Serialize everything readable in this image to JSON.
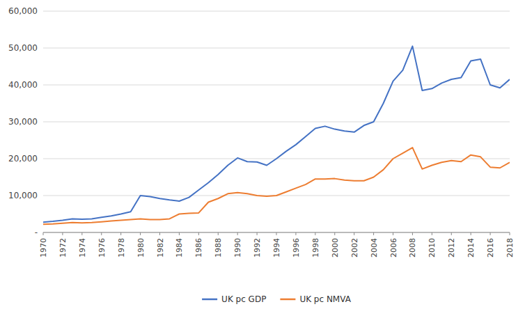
{
  "chart_data": {
    "type": "line",
    "x": [
      1970,
      1971,
      1972,
      1973,
      1974,
      1975,
      1976,
      1977,
      1978,
      1979,
      1980,
      1981,
      1982,
      1983,
      1984,
      1985,
      1986,
      1987,
      1988,
      1989,
      1990,
      1991,
      1992,
      1993,
      1994,
      1995,
      1996,
      1997,
      1998,
      1999,
      2000,
      2001,
      2002,
      2003,
      2004,
      2005,
      2006,
      2007,
      2008,
      2009,
      2010,
      2011,
      2012,
      2013,
      2014,
      2015,
      2016,
      2017,
      2018
    ],
    "series": [
      {
        "name": "UK pc GDP",
        "color": "#4472C4",
        "values": [
          2800,
          3000,
          3300,
          3700,
          3600,
          3700,
          4100,
          4500,
          5000,
          5600,
          10000,
          9700,
          9200,
          8800,
          8500,
          9500,
          11500,
          13500,
          15700,
          18200,
          20200,
          19200,
          19100,
          18200,
          20000,
          22000,
          23800,
          26000,
          28200,
          28800,
          28000,
          27500,
          27200,
          29000,
          30000,
          35000,
          41000,
          44000,
          50500,
          38500,
          39000,
          40500,
          41500,
          42000,
          46500,
          47000,
          40000,
          39200,
          41500
        ]
      },
      {
        "name": "UK pc NMVA",
        "color": "#ED7D31",
        "values": [
          2200,
          2300,
          2500,
          2700,
          2600,
          2700,
          2900,
          3100,
          3300,
          3500,
          3700,
          3500,
          3500,
          3700,
          5000,
          5200,
          5300,
          8200,
          9200,
          10500,
          10800,
          10500,
          10000,
          9800,
          10000,
          11000,
          12000,
          13000,
          14500,
          14500,
          14600,
          14200,
          14000,
          14000,
          15000,
          17000,
          20000,
          21500,
          23000,
          17200,
          18200,
          19000,
          19500,
          19200,
          21000,
          20500,
          17700,
          17500,
          19000
        ]
      }
    ],
    "xlim": [
      1970,
      2018
    ],
    "xticks": [
      1970,
      1972,
      1974,
      1976,
      1978,
      1980,
      1982,
      1984,
      1986,
      1988,
      1990,
      1992,
      1994,
      1996,
      1998,
      2000,
      2002,
      2004,
      2006,
      2008,
      2010,
      2012,
      2014,
      2016,
      2018
    ],
    "ylim": [
      0,
      60000
    ],
    "yticks": [
      {
        "value": 0,
        "label": "-"
      },
      {
        "value": 10000,
        "label": "10,000"
      },
      {
        "value": 20000,
        "label": "20,000"
      },
      {
        "value": 30000,
        "label": "30,000"
      },
      {
        "value": 40000,
        "label": "40,000"
      },
      {
        "value": 50000,
        "label": "50,000"
      },
      {
        "value": 60000,
        "label": "60,000"
      }
    ],
    "grid": true,
    "legend": "bottom"
  }
}
